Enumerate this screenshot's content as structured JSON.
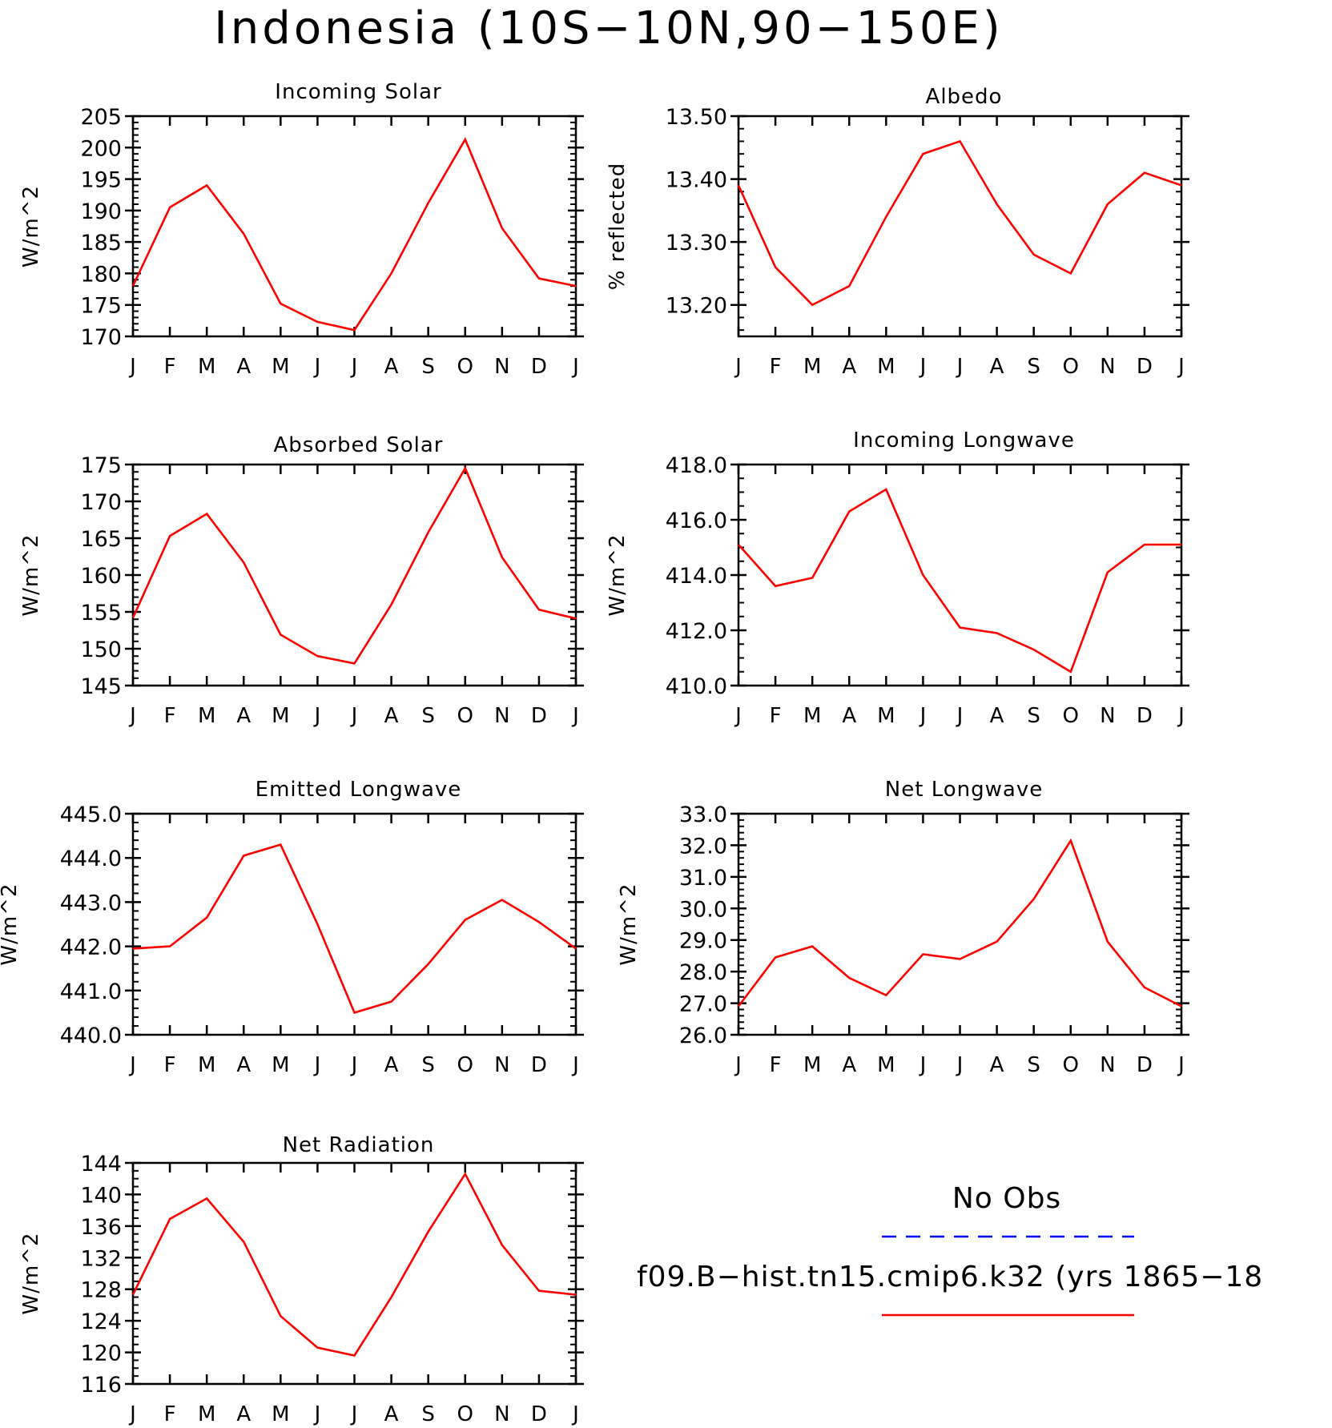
{
  "title": "Indonesia (10S−10N,90−150E)",
  "colors": {
    "model": "#ff0000",
    "obs": "#0000ff",
    "axis": "#000000"
  },
  "legend": {
    "obs_label": "No Obs",
    "model_label": "f09.B−hist.tn15.cmip6.k32 (yrs 1865−18"
  },
  "chart_data": [
    {
      "type": "line",
      "title": "Incoming Solar",
      "ylabel": "W/m^2",
      "categories": [
        "J",
        "F",
        "M",
        "A",
        "M",
        "J",
        "J",
        "A",
        "S",
        "O",
        "N",
        "D",
        "J"
      ],
      "ylim": [
        170,
        205
      ],
      "yticks": [
        "170",
        "175",
        "180",
        "185",
        "190",
        "195",
        "200",
        "205"
      ],
      "yminor_per_major": 5,
      "series": [
        {
          "values": [
            178.0,
            190.5,
            194.0,
            186.3,
            175.2,
            172.3,
            171.0,
            180.0,
            191.2,
            201.3,
            187.2,
            179.2,
            178.0
          ]
        }
      ]
    },
    {
      "type": "line",
      "title": "Albedo",
      "ylabel": "% reflected",
      "categories": [
        "J",
        "F",
        "M",
        "A",
        "M",
        "J",
        "J",
        "A",
        "S",
        "O",
        "N",
        "D",
        "J"
      ],
      "ylim": [
        13.15,
        13.5
      ],
      "yticks": [
        "13.20",
        "13.30",
        "13.40",
        "13.50"
      ],
      "yminor_per_major": 5,
      "series": [
        {
          "values": [
            13.39,
            13.26,
            13.2,
            13.23,
            13.34,
            13.44,
            13.46,
            13.36,
            13.28,
            13.25,
            13.36,
            13.41,
            13.39
          ]
        }
      ]
    },
    {
      "type": "line",
      "title": "Absorbed Solar",
      "ylabel": "W/m^2",
      "categories": [
        "J",
        "F",
        "M",
        "A",
        "M",
        "J",
        "J",
        "A",
        "S",
        "O",
        "N",
        "D",
        "J"
      ],
      "ylim": [
        145,
        175
      ],
      "yticks": [
        "145",
        "150",
        "155",
        "160",
        "165",
        "170",
        "175"
      ],
      "yminor_per_major": 5,
      "series": [
        {
          "values": [
            154.2,
            165.3,
            168.3,
            161.7,
            151.9,
            149.0,
            148.0,
            156.0,
            165.8,
            174.5,
            162.4,
            155.3,
            154.1
          ]
        }
      ]
    },
    {
      "type": "line",
      "title": "Incoming Longwave",
      "ylabel": "W/m^2",
      "categories": [
        "J",
        "F",
        "M",
        "A",
        "M",
        "J",
        "J",
        "A",
        "S",
        "O",
        "N",
        "D",
        "J"
      ],
      "ylim": [
        410,
        418
      ],
      "yticks": [
        "410.0",
        "412.0",
        "414.0",
        "416.0",
        "418.0"
      ],
      "yminor_per_major": 4,
      "series": [
        {
          "values": [
            415.1,
            413.6,
            413.9,
            416.3,
            417.1,
            414.0,
            412.1,
            411.9,
            411.3,
            410.5,
            414.1,
            415.1,
            415.1
          ]
        }
      ]
    },
    {
      "type": "line",
      "title": "Emitted Longwave",
      "ylabel": "W/m^2",
      "categories": [
        "J",
        "F",
        "M",
        "A",
        "M",
        "J",
        "J",
        "A",
        "S",
        "O",
        "N",
        "D",
        "J"
      ],
      "ylim": [
        440,
        445
      ],
      "yticks": [
        "440.0",
        "441.0",
        "442.0",
        "443.0",
        "444.0",
        "445.0"
      ],
      "yminor_per_major": 5,
      "series": [
        {
          "values": [
            441.95,
            442.0,
            442.65,
            444.05,
            444.3,
            442.5,
            440.5,
            440.75,
            441.6,
            442.6,
            443.05,
            442.55,
            441.95
          ]
        }
      ]
    },
    {
      "type": "line",
      "title": "Net Longwave",
      "ylabel": "W/m^2",
      "categories": [
        "J",
        "F",
        "M",
        "A",
        "M",
        "J",
        "J",
        "A",
        "S",
        "O",
        "N",
        "D",
        "J"
      ],
      "ylim": [
        26,
        33
      ],
      "yticks": [
        "26.0",
        "27.0",
        "28.0",
        "29.0",
        "30.0",
        "31.0",
        "32.0",
        "33.0"
      ],
      "yminor_per_major": 5,
      "series": [
        {
          "values": [
            26.9,
            28.45,
            28.8,
            27.8,
            27.25,
            28.55,
            28.4,
            28.95,
            30.3,
            32.15,
            28.95,
            27.5,
            26.9
          ]
        }
      ]
    },
    {
      "type": "line",
      "title": "Net Radiation",
      "ylabel": "W/m^2",
      "categories": [
        "J",
        "F",
        "M",
        "A",
        "M",
        "J",
        "J",
        "A",
        "S",
        "O",
        "N",
        "D",
        "J"
      ],
      "ylim": [
        116,
        144
      ],
      "yticks": [
        "116",
        "120",
        "124",
        "128",
        "132",
        "136",
        "140",
        "144"
      ],
      "yminor_per_major": 4,
      "series": [
        {
          "values": [
            127.3,
            136.9,
            139.5,
            134.0,
            124.6,
            120.6,
            119.6,
            127.0,
            135.3,
            142.6,
            133.6,
            127.8,
            127.3
          ]
        }
      ]
    }
  ]
}
